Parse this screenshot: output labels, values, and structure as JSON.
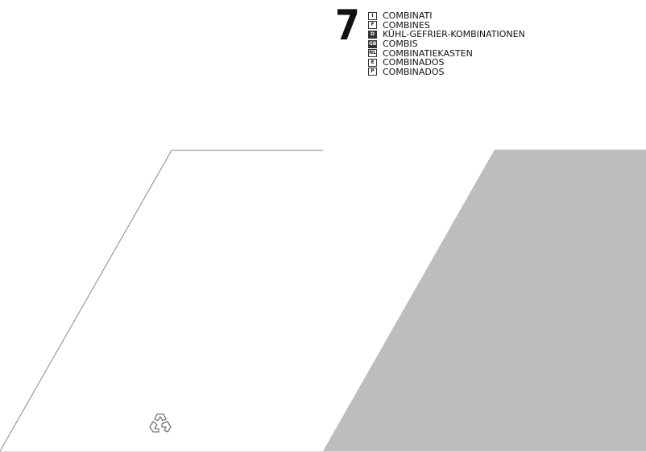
{
  "section_number": "7",
  "titles": [
    {
      "code": "I",
      "label": "COMBINATI"
    },
    {
      "code": "F",
      "label": "COMBINES"
    },
    {
      "code": "D",
      "label": "KÜHL-GEFRIER-KOMBINATIONEN"
    },
    {
      "code": "GB",
      "label": "COMBIS"
    },
    {
      "code": "NL",
      "label": "COMBINATIEKASTEN"
    },
    {
      "code": "E",
      "label": "COMBINADOS"
    },
    {
      "code": "P",
      "label": "COMBINADOS"
    }
  ],
  "colors": {
    "panel_gray": "#bdbdbd",
    "outline": "#888888"
  },
  "icons": [
    "recycle-icon"
  ]
}
